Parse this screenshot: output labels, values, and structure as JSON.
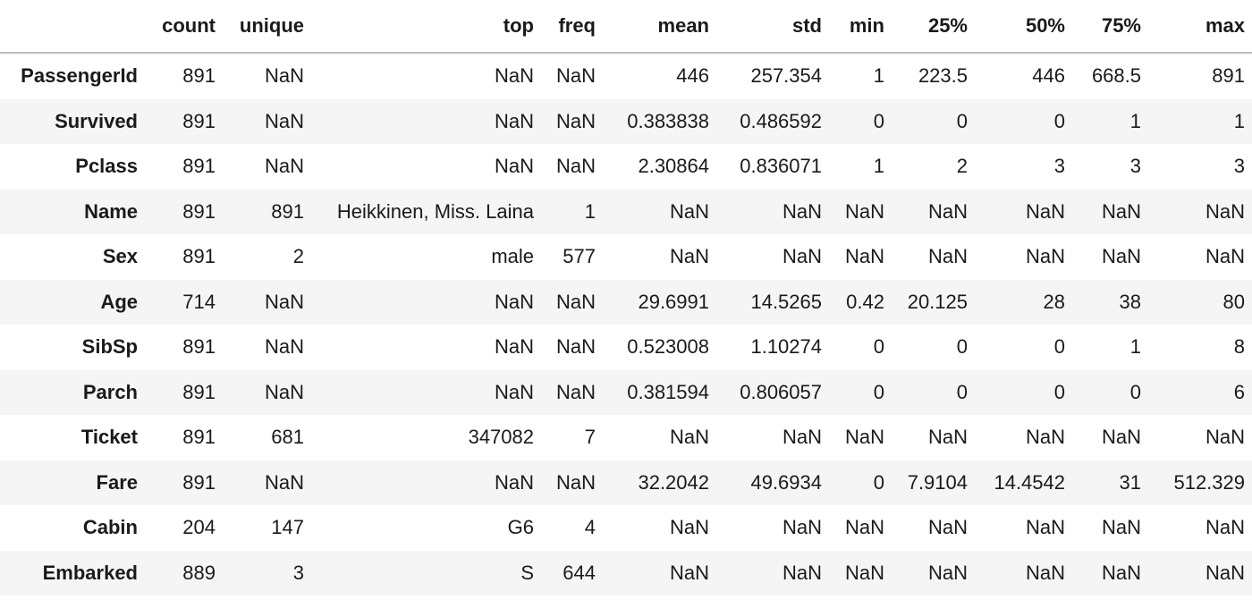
{
  "table": {
    "index_header": "",
    "columns": [
      "count",
      "unique",
      "top",
      "freq",
      "mean",
      "std",
      "min",
      "25%",
      "50%",
      "75%",
      "max"
    ],
    "rows": [
      {
        "label": "PassengerId",
        "values": [
          "891",
          "NaN",
          "NaN",
          "NaN",
          "446",
          "257.354",
          "1",
          "223.5",
          "446",
          "668.5",
          "891"
        ]
      },
      {
        "label": "Survived",
        "values": [
          "891",
          "NaN",
          "NaN",
          "NaN",
          "0.383838",
          "0.486592",
          "0",
          "0",
          "0",
          "1",
          "1"
        ]
      },
      {
        "label": "Pclass",
        "values": [
          "891",
          "NaN",
          "NaN",
          "NaN",
          "2.30864",
          "0.836071",
          "1",
          "2",
          "3",
          "3",
          "3"
        ]
      },
      {
        "label": "Name",
        "values": [
          "891",
          "891",
          "Heikkinen, Miss. Laina",
          "1",
          "NaN",
          "NaN",
          "NaN",
          "NaN",
          "NaN",
          "NaN",
          "NaN"
        ]
      },
      {
        "label": "Sex",
        "values": [
          "891",
          "2",
          "male",
          "577",
          "NaN",
          "NaN",
          "NaN",
          "NaN",
          "NaN",
          "NaN",
          "NaN"
        ]
      },
      {
        "label": "Age",
        "values": [
          "714",
          "NaN",
          "NaN",
          "NaN",
          "29.6991",
          "14.5265",
          "0.42",
          "20.125",
          "28",
          "38",
          "80"
        ]
      },
      {
        "label": "SibSp",
        "values": [
          "891",
          "NaN",
          "NaN",
          "NaN",
          "0.523008",
          "1.10274",
          "0",
          "0",
          "0",
          "1",
          "8"
        ]
      },
      {
        "label": "Parch",
        "values": [
          "891",
          "NaN",
          "NaN",
          "NaN",
          "0.381594",
          "0.806057",
          "0",
          "0",
          "0",
          "0",
          "6"
        ]
      },
      {
        "label": "Ticket",
        "values": [
          "891",
          "681",
          "347082",
          "7",
          "NaN",
          "NaN",
          "NaN",
          "NaN",
          "NaN",
          "NaN",
          "NaN"
        ]
      },
      {
        "label": "Fare",
        "values": [
          "891",
          "NaN",
          "NaN",
          "NaN",
          "32.2042",
          "49.6934",
          "0",
          "7.9104",
          "14.4542",
          "31",
          "512.329"
        ]
      },
      {
        "label": "Cabin",
        "values": [
          "204",
          "147",
          "G6",
          "4",
          "NaN",
          "NaN",
          "NaN",
          "NaN",
          "NaN",
          "NaN",
          "NaN"
        ]
      },
      {
        "label": "Embarked",
        "values": [
          "889",
          "3",
          "S",
          "644",
          "NaN",
          "NaN",
          "NaN",
          "NaN",
          "NaN",
          "NaN",
          "NaN"
        ]
      }
    ]
  }
}
